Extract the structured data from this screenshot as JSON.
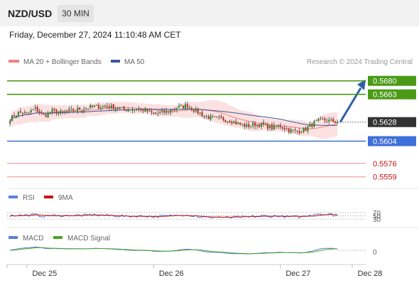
{
  "header": {
    "symbol": "NZD/USD",
    "timeframe": "30 MIN",
    "datetime": "Friday, December 27, 2024 11:10:48 AM CET",
    "copyright": "Research © 2024 Trading Central"
  },
  "legend": {
    "bollinger": {
      "label": "MA 20 + Bollinger Bands",
      "color": "#f08080"
    },
    "ma50": {
      "label": "MA 50",
      "color": "#3b5998"
    }
  },
  "colors": {
    "resistance": "#4a9a16",
    "pivot": "#3f6fd8",
    "support": "#e85a5a",
    "current": "#333333",
    "candle_up": "#2e8b2e",
    "candle_down": "#c0392b",
    "rsi": "#5b7fd8",
    "rsi_ma": "#cc1111",
    "macd": "#5b7fd8",
    "macd_signal": "#4aa52a",
    "arrow": "#2f5fa8"
  },
  "chart_data": {
    "type": "candlestick",
    "x_ticks": [
      "Dec 25",
      "Dec 26",
      "Dec 27",
      "Dec 28"
    ],
    "x_tick_index": [
      8,
      68,
      128,
      162
    ],
    "ylim": [
      0.5548,
      0.5695
    ],
    "levels": [
      {
        "name": "resistance-2",
        "value": 0.568,
        "label": "0.5680",
        "kind": "resistance"
      },
      {
        "name": "resistance-1",
        "value": 0.5663,
        "label": "0.5663",
        "kind": "resistance"
      },
      {
        "name": "current-price",
        "value": 0.5628,
        "label": "0.5628",
        "kind": "current"
      },
      {
        "name": "pivot",
        "value": 0.5604,
        "label": "0.5604",
        "kind": "pivot"
      },
      {
        "name": "support-1",
        "value": 0.5576,
        "label": "0.5576",
        "kind": "support"
      },
      {
        "name": "support-2",
        "value": 0.5559,
        "label": "0.5559",
        "kind": "support"
      }
    ],
    "close_anchors": [
      [
        0,
        0.5632
      ],
      [
        4,
        0.564
      ],
      [
        8,
        0.5639
      ],
      [
        12,
        0.5645
      ],
      [
        16,
        0.5636
      ],
      [
        20,
        0.5642
      ],
      [
        24,
        0.564
      ],
      [
        30,
        0.5643
      ],
      [
        36,
        0.5646
      ],
      [
        42,
        0.5648
      ],
      [
        48,
        0.5647
      ],
      [
        54,
        0.5644
      ],
      [
        60,
        0.5645
      ],
      [
        64,
        0.5643
      ],
      [
        68,
        0.5638
      ],
      [
        74,
        0.5641
      ],
      [
        80,
        0.5647
      ],
      [
        84,
        0.5649
      ],
      [
        88,
        0.5642
      ],
      [
        92,
        0.5636
      ],
      [
        96,
        0.5633
      ],
      [
        100,
        0.5632
      ],
      [
        104,
        0.563
      ],
      [
        108,
        0.5626
      ],
      [
        112,
        0.5623
      ],
      [
        116,
        0.5625
      ],
      [
        120,
        0.5624
      ],
      [
        124,
        0.5621
      ],
      [
        128,
        0.5623
      ],
      [
        132,
        0.5618
      ],
      [
        136,
        0.5616
      ],
      [
        140,
        0.5619
      ],
      [
        144,
        0.5627
      ],
      [
        148,
        0.5631
      ],
      [
        152,
        0.5629
      ],
      [
        155,
        0.5628
      ]
    ],
    "forecast": {
      "from": 0.5628,
      "to": 0.568
    },
    "rsi": {
      "label": "RSI",
      "ma_label": "9MA",
      "levels": [
        {
          "value": 70,
          "label": "70"
        },
        {
          "value": 50,
          "label": "50"
        },
        {
          "value": 30,
          "label": "30"
        }
      ],
      "ylim": [
        0,
        100
      ]
    },
    "macd": {
      "label": "MACD",
      "signal_label": "MACD Signal",
      "zero_label": "0"
    }
  }
}
